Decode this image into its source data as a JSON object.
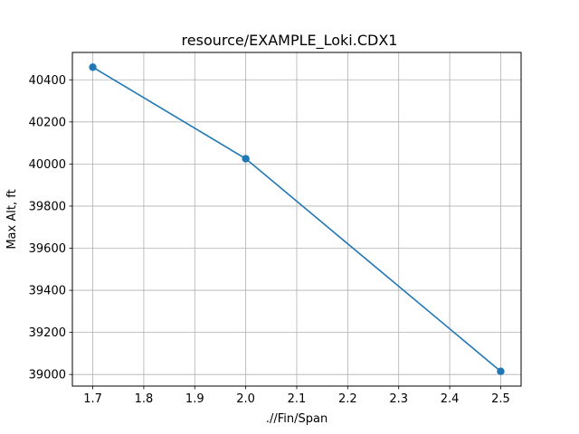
{
  "chart_data": {
    "type": "line",
    "title": "resource/EXAMPLE_Loki.CDX1",
    "xlabel": ".//Fin/Span",
    "ylabel": "Max Alt, ft",
    "x": [
      1.7,
      2.0,
      2.5
    ],
    "series": [
      {
        "values": [
          40460,
          40025,
          39015
        ],
        "color": "#1f77b4",
        "marker": "circle"
      }
    ],
    "xlim": [
      1.66,
      2.54
    ],
    "ylim": [
      38945,
      40530
    ],
    "xticks": [
      1.7,
      1.8,
      1.9,
      2.0,
      2.1,
      2.2,
      2.3,
      2.4,
      2.5
    ],
    "xtick_labels": [
      "1.7",
      "1.8",
      "1.9",
      "2.0",
      "2.1",
      "2.2",
      "2.3",
      "2.4",
      "2.5"
    ],
    "yticks": [
      39000,
      39200,
      39400,
      39600,
      39800,
      40000,
      40200,
      40400
    ],
    "ytick_labels": [
      "39000",
      "39200",
      "39400",
      "39600",
      "39800",
      "40000",
      "40200",
      "40400"
    ],
    "grid": true,
    "grid_color": "#b0b0b0"
  }
}
